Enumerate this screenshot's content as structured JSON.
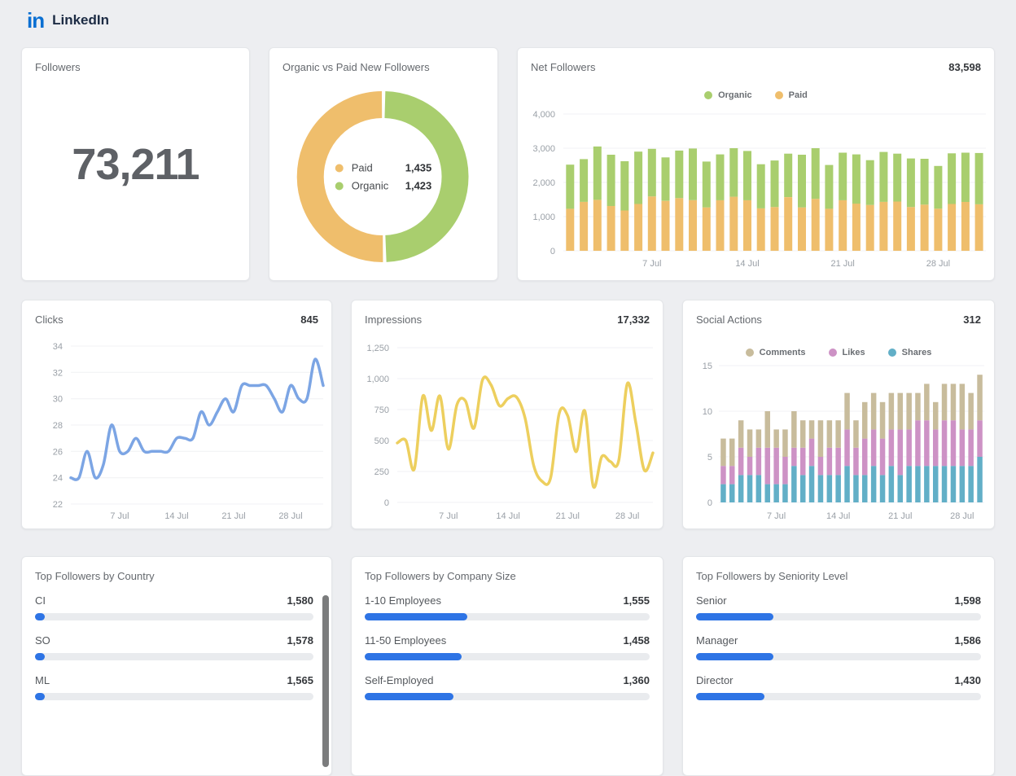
{
  "header": {
    "logo": "in",
    "title": "LinkedIn"
  },
  "colors": {
    "organic_green": "#A9CE6E",
    "paid_orange": "#EFBE6C",
    "clicks_blue": "#7CA5E4",
    "impressions_yellow": "#EDCF5E",
    "comments_tan": "#C8BC9C",
    "likes_pink": "#CD92C5",
    "shares_teal": "#62AFC7",
    "progress_blue": "#2E74E5",
    "linkedin_blue": "#0A6FD2"
  },
  "cards": {
    "followers": {
      "title": "Followers",
      "value": "73,211"
    },
    "organic_vs_paid": {
      "title": "Organic vs Paid New Followers",
      "chart_data": {
        "type": "pie",
        "slices": [
          {
            "label": "Paid",
            "value": 1435,
            "display": "1,435",
            "color": "#EFBE6C"
          },
          {
            "label": "Organic",
            "value": 1423,
            "display": "1,423",
            "color": "#A9CE6E"
          }
        ]
      }
    },
    "net_followers": {
      "title": "Net Followers",
      "value": "83,598",
      "chart_data": {
        "type": "bar",
        "stacked": true,
        "x_tick_labels": [
          "7 Jul",
          "14 Jul",
          "21 Jul",
          "28 Jul"
        ],
        "x_tick_indices": [
          6,
          13,
          20,
          27
        ],
        "ylim": [
          0,
          4000
        ],
        "y_ticks": [
          0,
          1000,
          2000,
          3000,
          4000
        ],
        "y_tick_labels": [
          "0",
          "1,000",
          "2,000",
          "3,000",
          "4,000"
        ],
        "legend": [
          {
            "label": "Organic",
            "color": "#A9CE6E"
          },
          {
            "label": "Paid",
            "color": "#EFBE6C"
          }
        ],
        "series": [
          {
            "name": "Paid",
            "color": "#EFBE6C",
            "values": [
              1230,
              1430,
              1490,
              1310,
              1180,
              1370,
              1590,
              1460,
              1540,
              1480,
              1270,
              1480,
              1580,
              1480,
              1240,
              1280,
              1570,
              1270,
              1520,
              1230,
              1480,
              1380,
              1340,
              1430,
              1440,
              1280,
              1350,
              1230,
              1370,
              1430,
              1360
            ]
          },
          {
            "name": "Organic",
            "color": "#A9CE6E",
            "values": [
              1290,
              1250,
              1560,
              1500,
              1440,
              1530,
              1390,
              1270,
              1390,
              1510,
              1340,
              1340,
              1420,
              1440,
              1290,
              1360,
              1270,
              1540,
              1480,
              1280,
              1390,
              1440,
              1310,
              1460,
              1400,
              1420,
              1340,
              1250,
              1480,
              1440,
              1500
            ]
          }
        ]
      }
    },
    "clicks": {
      "title": "Clicks",
      "value": "845",
      "chart_data": {
        "type": "line",
        "color": "#7CA5E4",
        "x_tick_labels": [
          "7 Jul",
          "14 Jul",
          "21 Jul",
          "28 Jul"
        ],
        "x_tick_indices": [
          6,
          13,
          20,
          27
        ],
        "ylim": [
          22,
          34
        ],
        "y_ticks": [
          22,
          24,
          26,
          28,
          30,
          32,
          34
        ],
        "y_tick_labels": [
          "22",
          "24",
          "26",
          "28",
          "30",
          "32",
          "34"
        ],
        "values": [
          24,
          24,
          26,
          24,
          25,
          28,
          26,
          26,
          27,
          26,
          26,
          26,
          26,
          27,
          27,
          27,
          29,
          28,
          29,
          30,
          29,
          31,
          31,
          31,
          31,
          30,
          29,
          31,
          30,
          30,
          33,
          31
        ]
      }
    },
    "impressions": {
      "title": "Impressions",
      "value": "17,332",
      "chart_data": {
        "type": "line",
        "color": "#EDCF5E",
        "x_tick_labels": [
          "7 Jul",
          "14 Jul",
          "21 Jul",
          "28 Jul"
        ],
        "x_tick_indices": [
          6,
          13,
          20,
          27
        ],
        "ylim": [
          0,
          1250
        ],
        "y_ticks": [
          0,
          250,
          500,
          750,
          1000,
          1250
        ],
        "y_tick_labels": [
          "0",
          "250",
          "500",
          "750",
          "1,000",
          "1,250"
        ],
        "values": [
          480,
          500,
          270,
          860,
          580,
          860,
          430,
          790,
          820,
          600,
          990,
          950,
          780,
          840,
          850,
          680,
          300,
          170,
          200,
          720,
          700,
          410,
          740,
          130,
          370,
          330,
          340,
          960,
          640,
          260,
          400
        ]
      }
    },
    "social_actions": {
      "title": "Social Actions",
      "value": "312",
      "chart_data": {
        "type": "bar",
        "stacked": true,
        "x_tick_labels": [
          "7 Jul",
          "14 Jul",
          "21 Jul",
          "28 Jul"
        ],
        "x_tick_indices": [
          6,
          13,
          20,
          27
        ],
        "ylim": [
          0,
          15
        ],
        "y_ticks": [
          0,
          5,
          10,
          15
        ],
        "y_tick_labels": [
          "0",
          "5",
          "10",
          "15"
        ],
        "legend": [
          {
            "label": "Comments",
            "color": "#C8BC9C"
          },
          {
            "label": "Likes",
            "color": "#CD92C5"
          },
          {
            "label": "Shares",
            "color": "#62AFC7"
          }
        ],
        "series": [
          {
            "name": "Shares",
            "color": "#62AFC7",
            "values": [
              2,
              2,
              3,
              3,
              3,
              2,
              2,
              2,
              4,
              3,
              4,
              3,
              3,
              3,
              4,
              3,
              3,
              4,
              3,
              4,
              3,
              4,
              4,
              4,
              4,
              4,
              4,
              4,
              4,
              5
            ]
          },
          {
            "name": "Likes",
            "color": "#CD92C5",
            "values": [
              2,
              2,
              3,
              2,
              3,
              4,
              4,
              3,
              2,
              3,
              3,
              2,
              3,
              3,
              4,
              3,
              4,
              4,
              4,
              4,
              5,
              4,
              5,
              5,
              4,
              5,
              5,
              4,
              4,
              4
            ]
          },
          {
            "name": "Comments",
            "color": "#C8BC9C",
            "values": [
              3,
              3,
              3,
              3,
              2,
              4,
              2,
              3,
              4,
              3,
              2,
              4,
              3,
              3,
              4,
              3,
              4,
              4,
              4,
              4,
              4,
              4,
              3,
              4,
              3,
              4,
              4,
              5,
              4,
              5
            ]
          }
        ]
      }
    },
    "top_country": {
      "title": "Top Followers by Country",
      "items": [
        {
          "label": "CI",
          "value": "1,580",
          "bar_pct": 3.5
        },
        {
          "label": "SO",
          "value": "1,578",
          "bar_pct": 3.5
        },
        {
          "label": "ML",
          "value": "1,565",
          "bar_pct": 3.5
        }
      ]
    },
    "top_company_size": {
      "title": "Top Followers by Company Size",
      "items": [
        {
          "label": "1-10 Employees",
          "value": "1,555",
          "bar_pct": 36
        },
        {
          "label": "11-50 Employees",
          "value": "1,458",
          "bar_pct": 34
        },
        {
          "label": "Self-Employed",
          "value": "1,360",
          "bar_pct": 31
        }
      ]
    },
    "top_seniority": {
      "title": "Top Followers by Seniority Level",
      "items": [
        {
          "label": "Senior",
          "value": "1,598",
          "bar_pct": 27
        },
        {
          "label": "Manager",
          "value": "1,586",
          "bar_pct": 27
        },
        {
          "label": "Director",
          "value": "1,430",
          "bar_pct": 24
        }
      ]
    }
  }
}
